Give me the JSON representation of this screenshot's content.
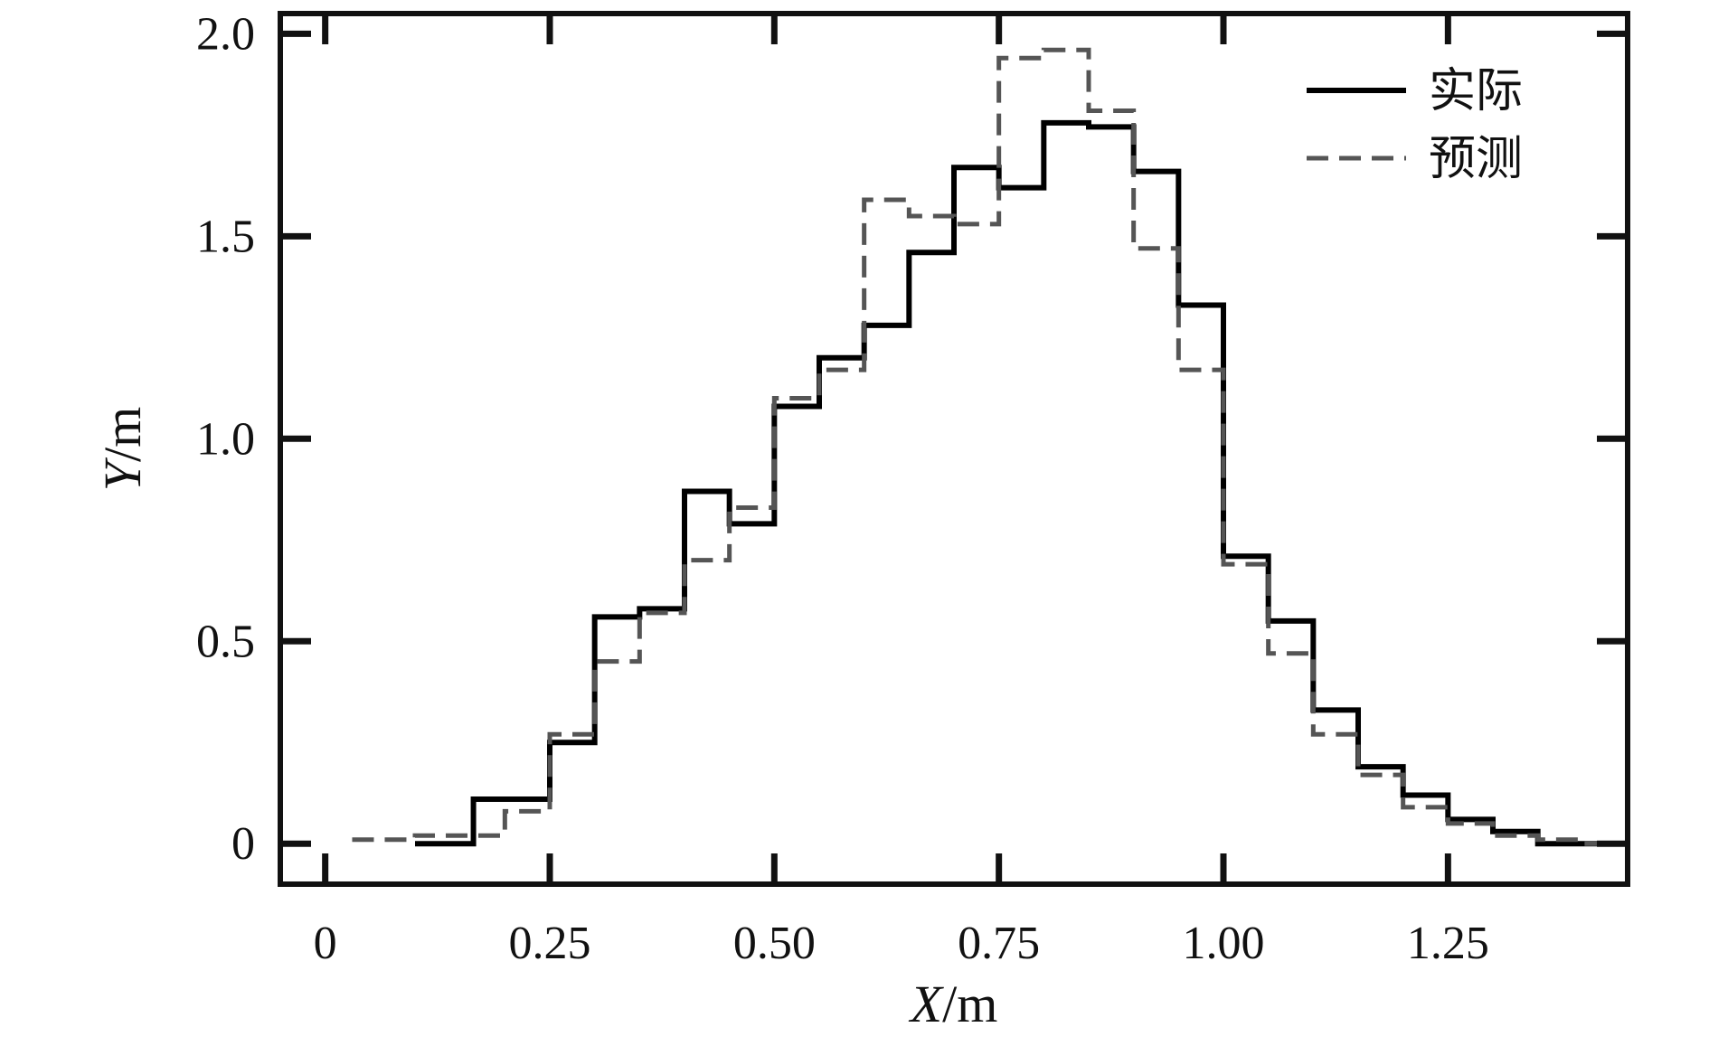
{
  "chart_data": {
    "type": "line",
    "step": "post",
    "xlabel": "X/m",
    "ylabel": "Y/m",
    "xlim": [
      -0.05,
      1.45
    ],
    "ylim": [
      -0.1,
      2.05
    ],
    "xticks": [
      {
        "value": 0,
        "label": "0"
      },
      {
        "value": 0.25,
        "label": "0.25"
      },
      {
        "value": 0.5,
        "label": "0.50"
      },
      {
        "value": 0.75,
        "label": "0.75"
      },
      {
        "value": 1.0,
        "label": "1.00"
      },
      {
        "value": 1.25,
        "label": "1.25"
      }
    ],
    "yticks": [
      {
        "value": 0,
        "label": "0"
      },
      {
        "value": 0.5,
        "label": "0.5"
      },
      {
        "value": 1.0,
        "label": "1.0"
      },
      {
        "value": 1.5,
        "label": "1.5"
      },
      {
        "value": 2.0,
        "label": "2.0"
      }
    ],
    "legend_position": "top-right",
    "series": [
      {
        "name": "实际",
        "style": "solid",
        "color": "#000000",
        "x": [
          0.1,
          0.165,
          0.25,
          0.3,
          0.35,
          0.4,
          0.45,
          0.5,
          0.55,
          0.6,
          0.65,
          0.7,
          0.75,
          0.8,
          0.85,
          0.9,
          0.95,
          1.0,
          1.05,
          1.1,
          1.15,
          1.2,
          1.25,
          1.3,
          1.35,
          1.4
        ],
        "y": [
          0.0,
          0.11,
          0.25,
          0.56,
          0.58,
          0.87,
          0.79,
          1.08,
          1.2,
          1.28,
          1.46,
          1.67,
          1.62,
          1.78,
          1.77,
          1.66,
          1.33,
          0.71,
          0.55,
          0.33,
          0.19,
          0.12,
          0.06,
          0.03,
          0.0,
          0.0
        ]
      },
      {
        "name": "预测",
        "style": "dashed",
        "color": "#555555",
        "x": [
          0.03,
          0.1,
          0.2,
          0.25,
          0.3,
          0.35,
          0.4,
          0.45,
          0.5,
          0.55,
          0.6,
          0.65,
          0.7,
          0.75,
          0.8,
          0.85,
          0.9,
          0.95,
          1.0,
          1.05,
          1.1,
          1.15,
          1.2,
          1.25,
          1.3,
          1.35,
          1.4
        ],
        "y": [
          0.01,
          0.02,
          0.08,
          0.27,
          0.45,
          0.57,
          0.7,
          0.83,
          1.1,
          1.17,
          1.59,
          1.55,
          1.53,
          1.94,
          1.96,
          1.81,
          1.47,
          1.17,
          0.69,
          0.47,
          0.27,
          0.17,
          0.09,
          0.05,
          0.02,
          0.01,
          0.0
        ]
      }
    ]
  }
}
